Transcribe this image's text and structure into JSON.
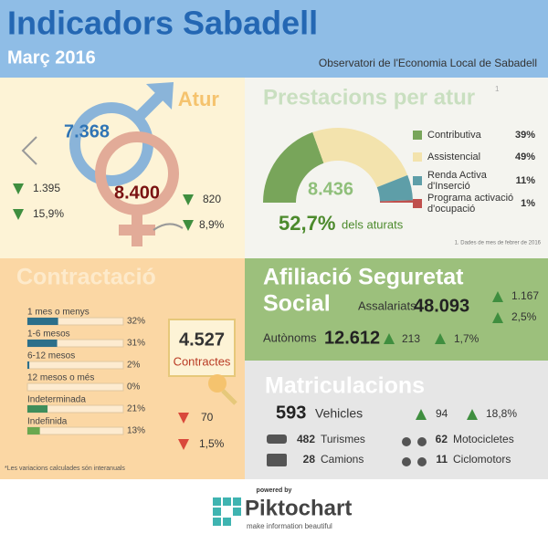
{
  "header": {
    "title": "Indicadors Sabadell",
    "subtitle": "Març 2016",
    "source": "Observatori de l'Economia Local de Sabadell"
  },
  "atur": {
    "title": "Atur",
    "men": "7.368",
    "women": "8.400",
    "men_change": "1.395",
    "men_pct": "15,9%",
    "women_change": "820",
    "women_pct": "8,9%"
  },
  "prestacions": {
    "title": "Prestacions per atur",
    "footnote_mark": "1",
    "total": "8.436",
    "share": "52,7%",
    "share_label": "dels aturats",
    "note": "1. Dades de mes de febrer de 2016",
    "items": [
      {
        "label": "Contributiva",
        "value": 39,
        "value_label": "39%",
        "color": "#78a55a"
      },
      {
        "label": "Assistencial",
        "value": 49,
        "value_label": "49%",
        "color": "#f3e3ad"
      },
      {
        "label": "Renda Activa d'Inserció",
        "value": 11,
        "value_label": "11%",
        "color": "#5e9ea8"
      },
      {
        "label": "Programa activació d'ocupació",
        "value": 1,
        "value_label": "1%",
        "color": "#c0504d"
      }
    ]
  },
  "contractacio": {
    "title": "Contractació",
    "total": "4.527",
    "total_label": "Contractes",
    "change": "70",
    "change_pct": "1,5%",
    "note": "*Les variacions calculades són interanuals",
    "items": [
      {
        "label": "1 mes o menys",
        "value": 32,
        "value_label": "32%",
        "color": "#2c6f8a"
      },
      {
        "label": "1-6 mesos",
        "value": 31,
        "value_label": "31%",
        "color": "#2c6f8a"
      },
      {
        "label": "6-12 mesos",
        "value": 2,
        "value_label": "2%",
        "color": "#2c6f8a"
      },
      {
        "label": "12 mesos o més",
        "value": 0,
        "value_label": "0%",
        "color": "#2c6f8a"
      },
      {
        "label": "Indeterminada",
        "value": 21,
        "value_label": "21%",
        "color": "#3f8e5b"
      },
      {
        "label": "Indefinida",
        "value": 13,
        "value_label": "13%",
        "color": "#6aa84f"
      }
    ]
  },
  "afiliacio": {
    "title_line1": "Afiliació Seguretat",
    "title_line2": "Social",
    "assalariats_label": "Assalariats",
    "assalariats": "48.093",
    "assalariats_change": "1.167",
    "assalariats_pct": "2,5%",
    "autonoms_label": "Autònoms",
    "autonoms": "12.612",
    "autonoms_change": "213",
    "autonoms_pct": "1,7%"
  },
  "matriculacions": {
    "title": "Matriculacions",
    "total": "593",
    "total_label": "Vehicles",
    "change": "94",
    "change_pct": "18,8%",
    "items": [
      {
        "value": "482",
        "label": "Turismes"
      },
      {
        "value": "28",
        "label": "Camions"
      },
      {
        "value": "62",
        "label": "Motocicletes"
      },
      {
        "value": "11",
        "label": "Ciclomotors"
      }
    ]
  },
  "footer": {
    "powered": "powered by",
    "brand": "Piktochart",
    "tagline": "make information beautiful"
  }
}
